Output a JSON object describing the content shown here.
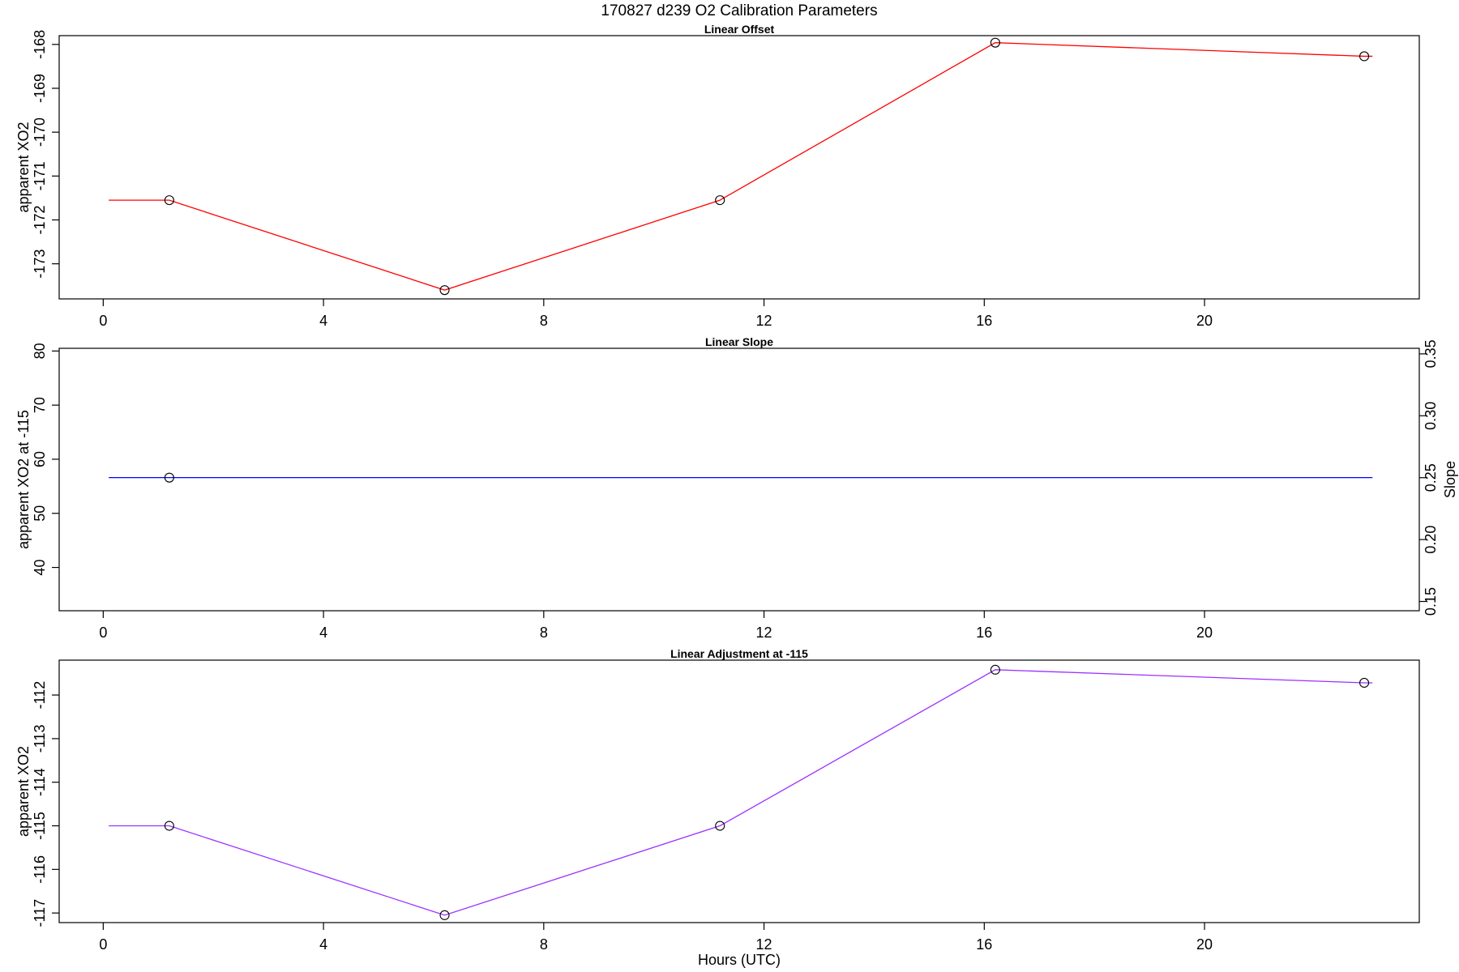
{
  "main_title": "170827   d239   O2 Calibration Parameters",
  "xlabel": "Hours (UTC)",
  "chart_data": [
    {
      "type": "line",
      "title": "Linear Offset",
      "xlabel": "",
      "ylabel": "apparent XO2",
      "xlim": [
        -0.8,
        23.9
      ],
      "ylim": [
        -173.8,
        -167.8
      ],
      "xticks": [
        "0",
        "4",
        "8",
        "12",
        "16",
        "20"
      ],
      "yticks": [
        "-173",
        "-172",
        "-171",
        "-170",
        "-169",
        "-168"
      ],
      "color": "#ff0000",
      "line": {
        "x": [
          0.1,
          1.2,
          6.2,
          11.2,
          16.2,
          22.9,
          23.05
        ],
        "y": [
          -171.55,
          -171.55,
          -173.6,
          -171.55,
          -167.96,
          -168.27,
          -168.27
        ]
      },
      "points": {
        "x": [
          1.2,
          6.2,
          11.2,
          16.2,
          22.9
        ],
        "y": [
          -171.55,
          -173.6,
          -171.55,
          -167.96,
          -168.27
        ]
      }
    },
    {
      "type": "line",
      "title": "Linear Slope",
      "xlabel": "",
      "ylabel": "apparent XO2 at -115",
      "ylabel_right": "Slope",
      "xlim": [
        -0.8,
        23.9
      ],
      "ylim": [
        32,
        80.5
      ],
      "y2lim": [
        0.1425,
        0.3545
      ],
      "xticks": [
        "0",
        "4",
        "8",
        "12",
        "16",
        "20"
      ],
      "yticks": [
        "40",
        "50",
        "60",
        "70",
        "80"
      ],
      "y2ticks": [
        "0.15",
        "0.20",
        "0.25",
        "0.30",
        "0.35"
      ],
      "color": "#0000ff",
      "line": {
        "x": [
          0.1,
          23.05
        ],
        "y": [
          56.6,
          56.6
        ]
      },
      "points": {
        "x": [
          1.2
        ],
        "y": [
          56.6
        ]
      }
    },
    {
      "type": "line",
      "title": "Linear Adjustment at -115",
      "xlabel": "Hours (UTC)",
      "ylabel": "apparent XO2",
      "xlim": [
        -0.8,
        23.9
      ],
      "ylim": [
        -117.22,
        -111.2
      ],
      "xticks": [
        "0",
        "4",
        "8",
        "12",
        "16",
        "20"
      ],
      "yticks": [
        "-117",
        "-116",
        "-115",
        "-114",
        "-113",
        "-112"
      ],
      "color": "#9b30ff",
      "line": {
        "x": [
          0.1,
          1.2,
          6.2,
          11.2,
          16.2,
          22.9,
          23.05
        ],
        "y": [
          -115.0,
          -115.0,
          -117.05,
          -115.0,
          -111.42,
          -111.72,
          -111.72
        ]
      },
      "points": {
        "x": [
          1.2,
          6.2,
          11.2,
          16.2,
          22.9
        ],
        "y": [
          -115.0,
          -117.05,
          -115.0,
          -111.42,
          -111.72
        ]
      }
    }
  ]
}
